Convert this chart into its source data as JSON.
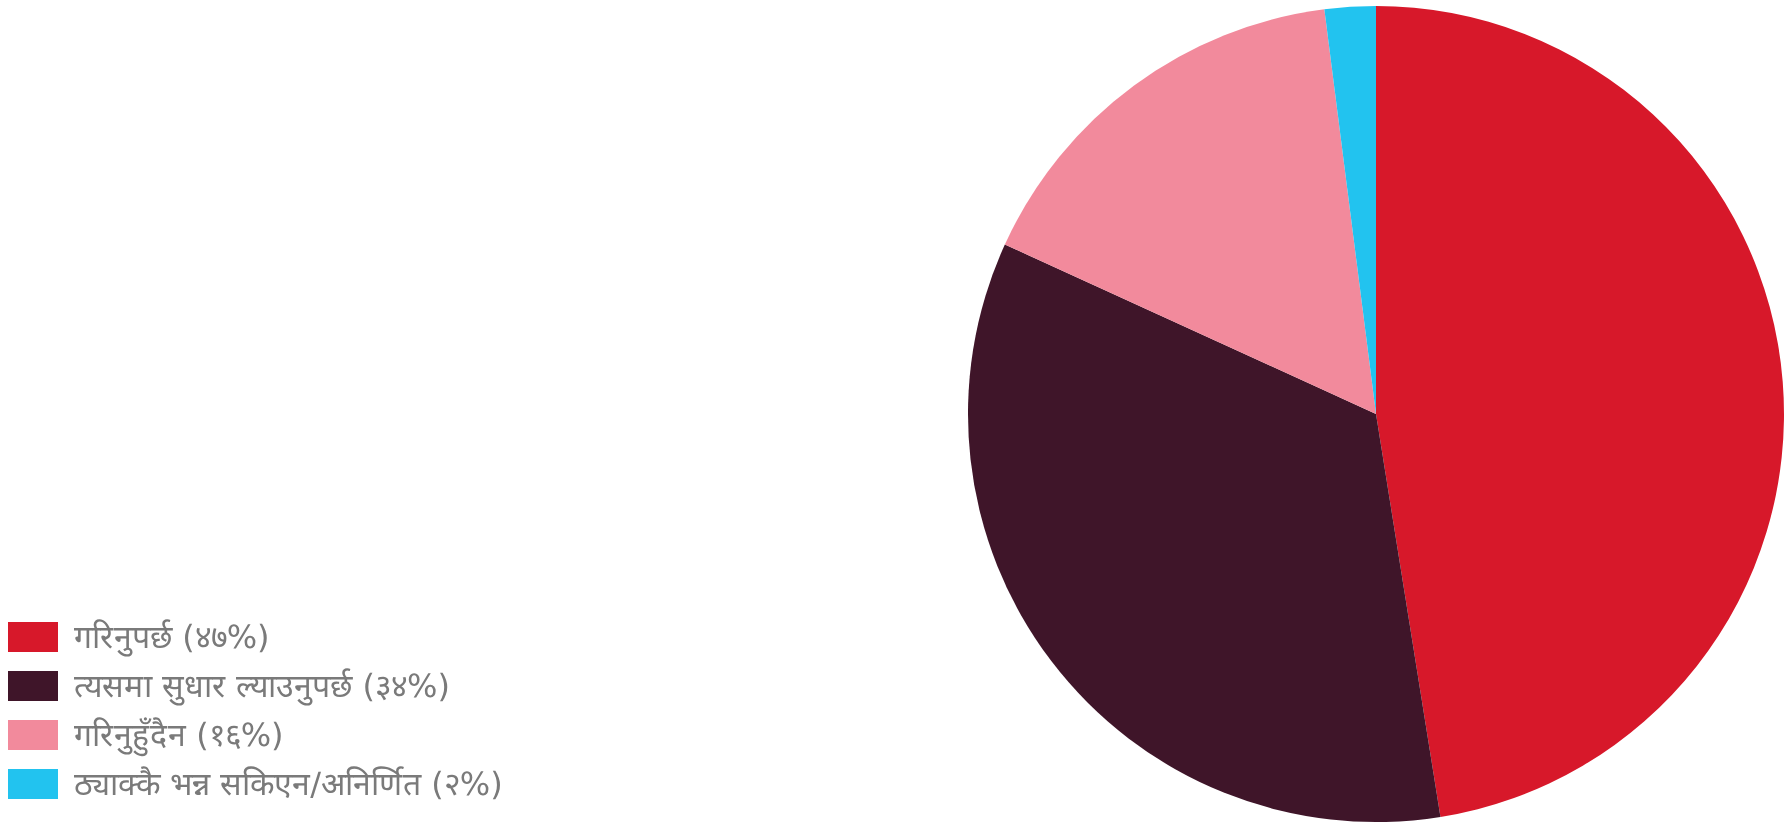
{
  "chart_data": {
    "type": "pie",
    "categories": [
      "गरिनुपर्छ (४७%)",
      "त्यसमा सुधार ल्याउनुपर्छ (३४%)",
      "गरिनुहुँदैन (१६%)",
      "ठ्याक्कै भन्न सकिएन/अनिर्णित (२%)"
    ],
    "values": [
      47,
      34,
      16,
      2
    ],
    "colors": [
      "#d7182a",
      "#3f1529",
      "#f28a9c",
      "#22c3ef"
    ],
    "legend": "bottom left"
  }
}
